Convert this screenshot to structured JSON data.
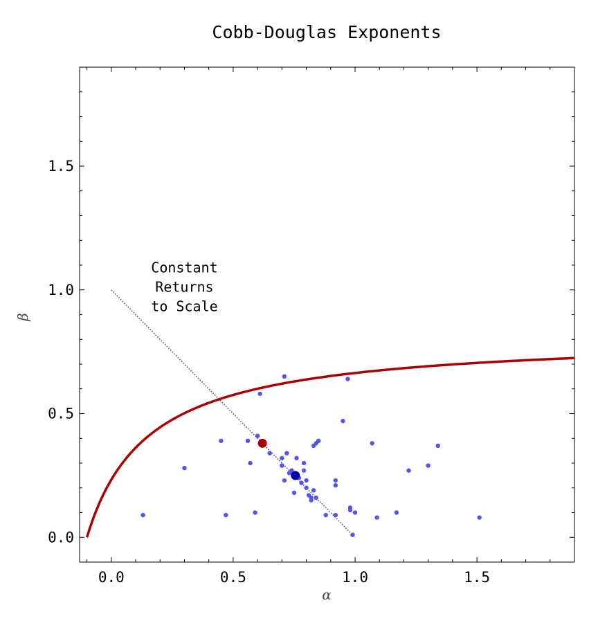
{
  "chart_data": {
    "type": "scatter",
    "title": "Cobb-Douglas Exponents",
    "xlabel": "α",
    "ylabel": "β",
    "xlim": [
      -0.13,
      1.9
    ],
    "ylim": [
      -0.1,
      1.9
    ],
    "x_ticks": [
      0.0,
      0.5,
      1.0,
      1.5
    ],
    "x_tick_labels": [
      "0.0",
      "0.5",
      "1.0",
      "1.5"
    ],
    "y_ticks": [
      0.0,
      0.5,
      1.0,
      1.5
    ],
    "y_tick_labels": [
      "0.0",
      "0.5",
      "1.0",
      "1.5"
    ],
    "grid": false,
    "annotations": [
      {
        "lines": [
          "Constant",
          "Returns",
          "to Scale"
        ],
        "x": 0.3,
        "y": 1.07
      }
    ],
    "reference_line": {
      "name": "Constant Returns to Scale",
      "x": [
        0.0,
        1.0
      ],
      "y": [
        1.0,
        0.0
      ],
      "color": "#555555",
      "style": "dotted"
    },
    "curve": {
      "color": "#aa0000",
      "x_range": [
        -0.1,
        1.9
      ],
      "a": 0.815,
      "b": 0.1,
      "c": 0.25
    },
    "points": {
      "color": "#5555ee",
      "x": [
        0.13,
        0.3,
        0.45,
        0.47,
        0.57,
        0.56,
        0.59,
        0.6,
        0.61,
        0.65,
        0.7,
        0.7,
        0.71,
        0.72,
        0.73,
        0.74,
        0.75,
        0.76,
        0.77,
        0.78,
        0.79,
        0.79,
        0.8,
        0.8,
        0.81,
        0.82,
        0.82,
        0.83,
        0.83,
        0.84,
        0.84,
        0.85,
        0.88,
        0.92,
        0.92,
        0.92,
        0.95,
        0.97,
        0.98,
        0.99,
        1.0,
        1.07,
        1.09,
        1.17,
        1.22,
        1.3,
        1.34,
        1.51,
        0.71,
        0.61,
        0.98
      ],
      "y": [
        0.09,
        0.28,
        0.39,
        0.09,
        0.3,
        0.39,
        0.1,
        0.41,
        0.58,
        0.34,
        0.32,
        0.29,
        0.23,
        0.34,
        0.26,
        0.27,
        0.18,
        0.32,
        0.24,
        0.22,
        0.27,
        0.3,
        0.2,
        0.23,
        0.17,
        0.15,
        0.16,
        0.37,
        0.19,
        0.16,
        0.38,
        0.39,
        0.09,
        0.21,
        0.23,
        0.09,
        0.47,
        0.64,
        0.12,
        0.01,
        0.1,
        0.38,
        0.08,
        0.1,
        0.27,
        0.29,
        0.37,
        0.08,
        0.65,
        0.38,
        0.11
      ]
    },
    "highlight_points": [
      {
        "x": 0.62,
        "y": 0.38,
        "color": "#aa0000"
      },
      {
        "x": 0.755,
        "y": 0.25,
        "color": "#0000aa"
      }
    ]
  }
}
